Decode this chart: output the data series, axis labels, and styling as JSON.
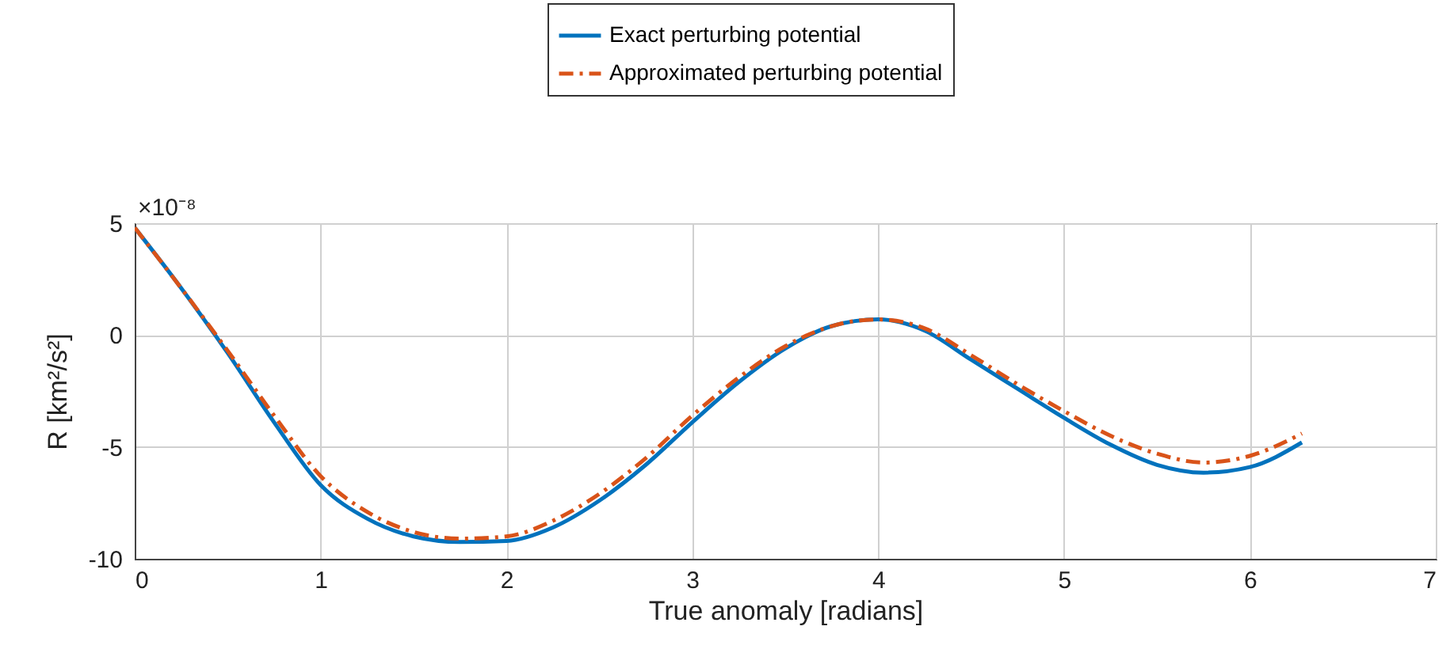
{
  "chart_data": {
    "type": "line",
    "xlabel": "True anomaly [radians]",
    "ylabel": "R [km²/s²]",
    "annotations": [
      "×10⁻⁸"
    ],
    "xlim": [
      0,
      7
    ],
    "xticks": [
      0,
      1,
      2,
      3,
      4,
      5,
      6,
      7
    ],
    "ylim": [
      -10,
      5
    ],
    "yticks": [
      -10,
      -5,
      0,
      5
    ],
    "grid": true,
    "legend": "top",
    "x": [
      0,
      0.25,
      0.5,
      0.75,
      1.0,
      1.25,
      1.5,
      1.75,
      2.0,
      2.25,
      2.5,
      2.75,
      3.0,
      3.25,
      3.5,
      3.75,
      4.0,
      4.25,
      4.5,
      4.75,
      5.0,
      5.25,
      5.5,
      5.75,
      6.0,
      6.28
    ],
    "series": [
      {
        "name": "Exact perturbing potential",
        "color": "#0072bd",
        "line_style": "solid",
        "values": [
          4.8,
          2.1,
          -0.8,
          -3.9,
          -6.7,
          -8.2,
          -9.0,
          -9.25,
          -9.2,
          -8.6,
          -7.4,
          -5.8,
          -3.9,
          -2.1,
          -0.6,
          0.4,
          0.7,
          0.2,
          -1.1,
          -2.4,
          -3.7,
          -4.9,
          -5.8,
          -6.15,
          -5.9,
          -4.8
        ]
      },
      {
        "name": "Approximated perturbing potential",
        "color": "#d95319",
        "line_style": "dashed",
        "values": [
          4.8,
          2.1,
          -0.7,
          -3.6,
          -6.3,
          -7.9,
          -8.8,
          -9.1,
          -9.0,
          -8.3,
          -7.1,
          -5.5,
          -3.6,
          -1.9,
          -0.5,
          0.4,
          0.7,
          0.3,
          -0.9,
          -2.2,
          -3.4,
          -4.5,
          -5.3,
          -5.7,
          -5.4,
          -4.4
        ]
      }
    ]
  }
}
